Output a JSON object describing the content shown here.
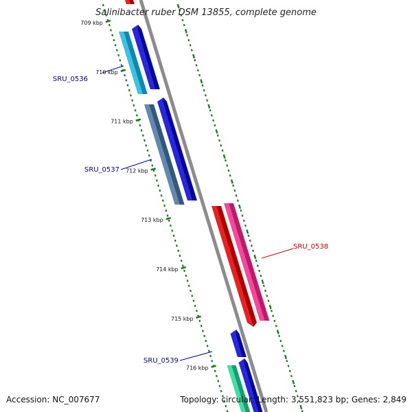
{
  "title": "Salinibacter ruber DSM 13855, complete genome",
  "accession": "Accession: NC_007677",
  "summary": "Topology: circular; Length: 3,551,823 bp; Genes: 2,849",
  "kbp_marks": [
    {
      "kbp": 709,
      "label": "709 kbp"
    },
    {
      "kbp": 710,
      "label": "710 kbp"
    },
    {
      "kbp": 711,
      "label": "711 kbp"
    },
    {
      "kbp": 712,
      "label": "712 kbp"
    },
    {
      "kbp": 713,
      "label": "713 kbp"
    },
    {
      "kbp": 714,
      "label": "714 kbp"
    },
    {
      "kbp": 715,
      "label": "715 kbp"
    },
    {
      "kbp": 716,
      "label": "716 kbp"
    }
  ],
  "genes": [
    {
      "label": "SRU_0536",
      "color": "#000099"
    },
    {
      "label": "SRU_0537",
      "color": "#000099"
    },
    {
      "label": "SRU_0538",
      "color": "#cc0000"
    },
    {
      "label": "SRU_0539",
      "color": "#000099"
    }
  ],
  "colors": {
    "backbone": "#8c8c8c",
    "ticks": "#1f7a1f",
    "blue": "#0a0adc",
    "cyan": "#19bde6",
    "steel": "#4a7aa6",
    "red": "#ee0000",
    "pink": "#ff2a8f",
    "mint": "#22dd99"
  }
}
